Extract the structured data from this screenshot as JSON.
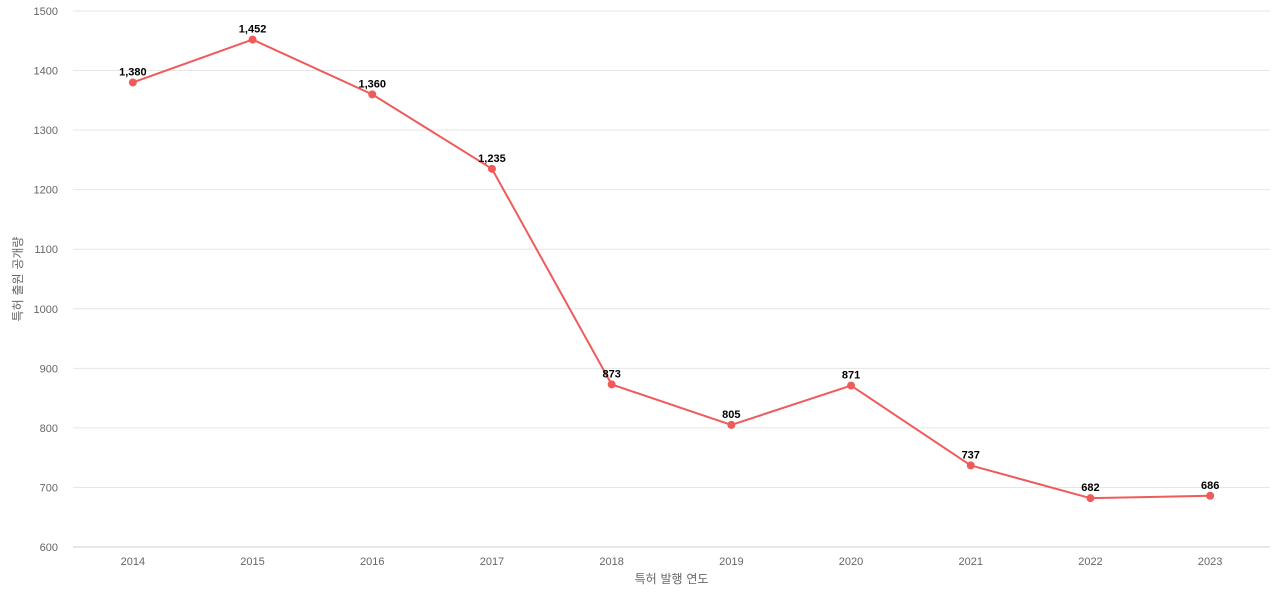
{
  "chart_data": {
    "type": "line",
    "title": "",
    "xlabel": "특허 발행 연도",
    "ylabel": "특허 출원 공개량",
    "categories": [
      "2014",
      "2015",
      "2016",
      "2017",
      "2018",
      "2019",
      "2020",
      "2021",
      "2022",
      "2023"
    ],
    "series": [
      {
        "values": [
          1380,
          1452,
          1360,
          1235,
          873,
          805,
          871,
          737,
          682,
          686
        ],
        "data_labels": [
          "1,380",
          "1,452",
          "1,360",
          "1,235",
          "873",
          "805",
          "871",
          "737",
          "682",
          "686"
        ],
        "color": "#ef5a5a"
      }
    ],
    "ylim": [
      600,
      1500
    ],
    "yticks": [
      "600",
      "700",
      "800",
      "900",
      "1000",
      "1100",
      "1200",
      "1300",
      "1400",
      "1500"
    ],
    "grid": true,
    "legend": "none"
  }
}
